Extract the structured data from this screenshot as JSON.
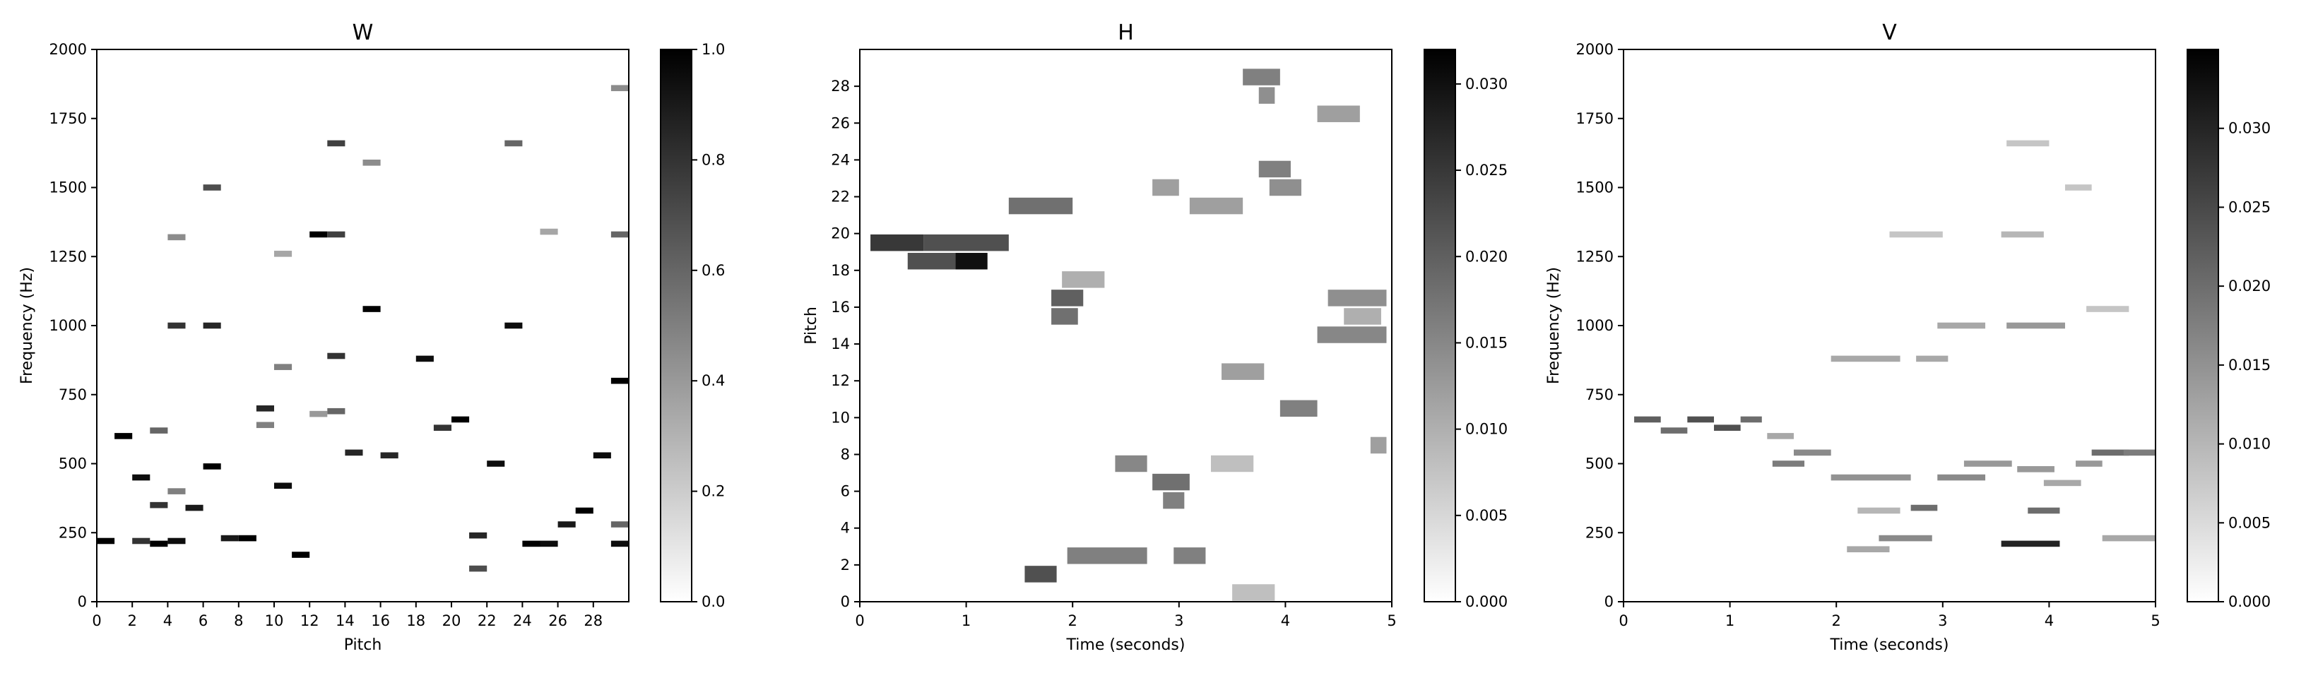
{
  "chart_data": [
    {
      "type": "heatmap",
      "title": "W",
      "xlabel": "Pitch",
      "ylabel": "Frequency (Hz)",
      "xlim": [
        0,
        30
      ],
      "ylim": [
        0,
        2000
      ],
      "xticks": [
        "0",
        "2",
        "4",
        "6",
        "8",
        "10",
        "12",
        "14",
        "16",
        "18",
        "20",
        "22",
        "24",
        "26",
        "28"
      ],
      "yticks": [
        "0",
        "250",
        "500",
        "750",
        "1000",
        "1250",
        "1500",
        "1750",
        "2000"
      ],
      "colorbar": {
        "range": [
          0,
          1.0
        ],
        "ticks": [
          "0.0",
          "0.2",
          "0.4",
          "0.6",
          "0.8",
          "1.0"
        ]
      },
      "colormap": [
        "#ffffff",
        "#000000"
      ],
      "cells": [
        [
          0.5,
          220,
          1.0
        ],
        [
          2.5,
          220,
          0.8
        ],
        [
          1.5,
          600,
          1.0
        ],
        [
          2.5,
          450,
          0.95
        ],
        [
          3.5,
          620,
          0.6
        ],
        [
          3.5,
          350,
          0.8
        ],
        [
          3.5,
          210,
          1.0
        ],
        [
          4.5,
          220,
          0.95
        ],
        [
          4.5,
          1000,
          0.8
        ],
        [
          4.5,
          1320,
          0.45
        ],
        [
          4.5,
          400,
          0.5
        ],
        [
          5.5,
          340,
          0.9
        ],
        [
          6.5,
          490,
          1.0
        ],
        [
          6.5,
          1000,
          0.85
        ],
        [
          6.5,
          1500,
          0.7
        ],
        [
          7.5,
          230,
          0.9
        ],
        [
          8.5,
          230,
          1.0
        ],
        [
          9.5,
          700,
          0.85
        ],
        [
          9.5,
          640,
          0.5
        ],
        [
          10.5,
          420,
          0.95
        ],
        [
          10.5,
          850,
          0.5
        ],
        [
          10.5,
          1260,
          0.35
        ],
        [
          11.5,
          170,
          1.0
        ],
        [
          12.5,
          680,
          0.4
        ],
        [
          12.5,
          1330,
          1.0
        ],
        [
          13.5,
          1330,
          0.75
        ],
        [
          13.5,
          1660,
          0.75
        ],
        [
          13.5,
          890,
          0.8
        ],
        [
          13.5,
          690,
          0.6
        ],
        [
          14.5,
          540,
          0.85
        ],
        [
          15.5,
          1060,
          1.0
        ],
        [
          15.5,
          1590,
          0.45
        ],
        [
          16.5,
          530,
          0.85
        ],
        [
          18.5,
          880,
          0.95
        ],
        [
          19.5,
          630,
          0.8
        ],
        [
          20.5,
          660,
          1.0
        ],
        [
          21.5,
          240,
          0.85
        ],
        [
          21.5,
          120,
          0.7
        ],
        [
          22.5,
          500,
          0.95
        ],
        [
          23.5,
          1000,
          0.95
        ],
        [
          23.5,
          1660,
          0.6
        ],
        [
          24.5,
          210,
          1.0
        ],
        [
          25.5,
          210,
          0.95
        ],
        [
          25.5,
          1340,
          0.35
        ],
        [
          26.5,
          280,
          0.9
        ],
        [
          27.5,
          330,
          1.0
        ],
        [
          28.5,
          530,
          0.95
        ],
        [
          29.5,
          210,
          0.95
        ],
        [
          29.5,
          800,
          1.0
        ],
        [
          29.5,
          1330,
          0.6
        ],
        [
          29.5,
          1860,
          0.45
        ],
        [
          29.5,
          280,
          0.6
        ]
      ]
    },
    {
      "type": "heatmap",
      "title": "H",
      "xlabel": "Time (seconds)",
      "ylabel": "Pitch",
      "xlim": [
        0,
        5
      ],
      "ylim": [
        0,
        30
      ],
      "xticks": [
        "0",
        "1",
        "2",
        "3",
        "4",
        "5"
      ],
      "yticks": [
        "0",
        "2",
        "4",
        "6",
        "8",
        "10",
        "12",
        "14",
        "16",
        "18",
        "20",
        "22",
        "24",
        "26",
        "28"
      ],
      "colorbar": {
        "range": [
          0,
          0.032
        ],
        "ticks": [
          "0.000",
          "0.005",
          "0.010",
          "0.015",
          "0.020",
          "0.025",
          "0.030"
        ]
      },
      "colormap": [
        "#ffffff",
        "#000000"
      ],
      "segments": [
        [
          18.5,
          0.45,
          0.9,
          0.022
        ],
        [
          18.5,
          0.9,
          1.2,
          0.03
        ],
        [
          19.5,
          0.1,
          0.6,
          0.025
        ],
        [
          19.5,
          0.6,
          1.4,
          0.022
        ],
        [
          21.5,
          1.4,
          2.0,
          0.018
        ],
        [
          17.5,
          1.9,
          2.3,
          0.01
        ],
        [
          16.5,
          1.8,
          2.1,
          0.02
        ],
        [
          15.5,
          1.8,
          2.05,
          0.018
        ],
        [
          1.5,
          1.55,
          1.85,
          0.022
        ],
        [
          2.5,
          1.95,
          2.7,
          0.016
        ],
        [
          2.5,
          2.95,
          3.25,
          0.016
        ],
        [
          7.5,
          2.4,
          2.7,
          0.015
        ],
        [
          6.5,
          2.75,
          3.1,
          0.018
        ],
        [
          5.5,
          2.85,
          3.05,
          0.016
        ],
        [
          22.5,
          2.75,
          3.0,
          0.012
        ],
        [
          21.5,
          3.1,
          3.6,
          0.012
        ],
        [
          28.5,
          3.6,
          3.95,
          0.016
        ],
        [
          27.5,
          3.75,
          3.9,
          0.014
        ],
        [
          23.5,
          3.75,
          4.05,
          0.016
        ],
        [
          22.5,
          3.85,
          4.15,
          0.014
        ],
        [
          10.5,
          3.95,
          4.3,
          0.016
        ],
        [
          12.5,
          3.4,
          3.8,
          0.012
        ],
        [
          14.5,
          4.3,
          4.95,
          0.015
        ],
        [
          16.5,
          4.4,
          4.95,
          0.014
        ],
        [
          15.5,
          4.55,
          4.9,
          0.01
        ],
        [
          8.5,
          4.8,
          4.95,
          0.012
        ],
        [
          0.5,
          3.5,
          3.9,
          0.008
        ],
        [
          26.5,
          4.3,
          4.7,
          0.012
        ],
        [
          7.5,
          3.3,
          3.7,
          0.008
        ]
      ]
    },
    {
      "type": "heatmap",
      "title": "V",
      "xlabel": "Time (seconds)",
      "ylabel": "Frequency (Hz)",
      "xlim": [
        0,
        5
      ],
      "ylim": [
        0,
        2000
      ],
      "xticks": [
        "0",
        "1",
        "2",
        "3",
        "4",
        "5"
      ],
      "yticks": [
        "0",
        "250",
        "500",
        "750",
        "1000",
        "1250",
        "1500",
        "1750",
        "2000"
      ],
      "colorbar": {
        "range": [
          0,
          0.035
        ],
        "ticks": [
          "0.000",
          "0.005",
          "0.010",
          "0.015",
          "0.020",
          "0.025",
          "0.030"
        ]
      },
      "colormap": [
        "#ffffff",
        "#000000"
      ],
      "segments": [
        [
          660,
          0.1,
          0.35,
          0.022
        ],
        [
          620,
          0.35,
          0.6,
          0.02
        ],
        [
          660,
          0.6,
          0.85,
          0.024
        ],
        [
          630,
          0.85,
          1.1,
          0.024
        ],
        [
          660,
          1.1,
          1.3,
          0.02
        ],
        [
          600,
          1.35,
          1.6,
          0.012
        ],
        [
          500,
          1.4,
          1.7,
          0.018
        ],
        [
          540,
          1.6,
          1.95,
          0.016
        ],
        [
          450,
          1.95,
          2.7,
          0.015
        ],
        [
          330,
          2.2,
          2.6,
          0.01
        ],
        [
          230,
          2.4,
          2.9,
          0.016
        ],
        [
          190,
          2.1,
          2.5,
          0.012
        ],
        [
          340,
          2.7,
          2.95,
          0.02
        ],
        [
          450,
          2.95,
          3.4,
          0.016
        ],
        [
          500,
          3.2,
          3.65,
          0.014
        ],
        [
          210,
          3.55,
          4.1,
          0.03
        ],
        [
          330,
          3.8,
          4.1,
          0.02
        ],
        [
          480,
          3.7,
          4.05,
          0.014
        ],
        [
          430,
          3.95,
          4.3,
          0.012
        ],
        [
          500,
          4.25,
          4.5,
          0.014
        ],
        [
          540,
          4.4,
          4.75,
          0.02
        ],
        [
          540,
          4.7,
          5.0,
          0.018
        ],
        [
          230,
          4.5,
          5.0,
          0.012
        ],
        [
          1000,
          2.95,
          3.4,
          0.012
        ],
        [
          1000,
          3.6,
          4.15,
          0.014
        ],
        [
          880,
          1.95,
          2.6,
          0.012
        ],
        [
          880,
          2.75,
          3.05,
          0.012
        ],
        [
          1330,
          2.5,
          3.0,
          0.008
        ],
        [
          1330,
          3.55,
          3.95,
          0.01
        ],
        [
          1660,
          3.6,
          4.0,
          0.008
        ],
        [
          1500,
          4.15,
          4.4,
          0.008
        ],
        [
          1060,
          4.35,
          4.75,
          0.008
        ]
      ]
    }
  ]
}
